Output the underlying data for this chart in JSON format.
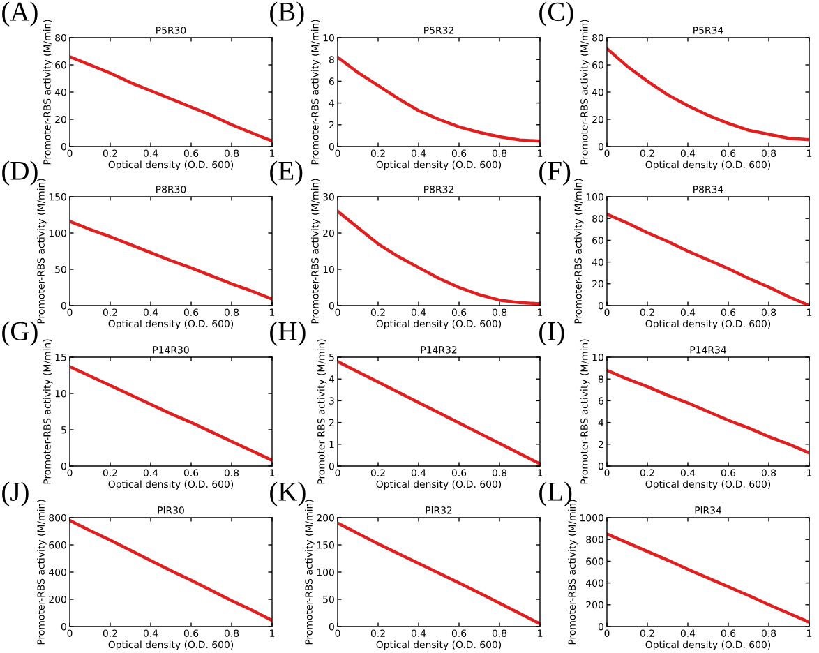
{
  "chart_data": [
    {
      "type": "line",
      "title": "P5R30",
      "xlabel": "Optical density (O.D. 600)",
      "ylabel": "Promoter-RBS activity (M/min)",
      "annotations": [
        "(A)"
      ],
      "x": [
        0,
        0.1,
        0.2,
        0.3,
        0.4,
        0.5,
        0.6,
        0.7,
        0.8,
        0.9,
        1
      ],
      "series": [
        {
          "color": "#e02020",
          "values": [
            66,
            60,
            54,
            47,
            41,
            35,
            29,
            23,
            16,
            10,
            4
          ]
        }
      ],
      "xlim": [
        0,
        1
      ],
      "xticks": [
        0,
        0.2,
        0.4,
        0.6,
        0.8,
        1
      ],
      "ylim": [
        0,
        80
      ],
      "yticks": [
        0,
        20,
        40,
        60,
        80
      ],
      "grid": false,
      "legend": false
    },
    {
      "type": "line",
      "title": "P5R32",
      "xlabel": "Optical density (O.D. 600)",
      "ylabel": "Promoter-RBS activity (M/min)",
      "annotations": [
        "(B)"
      ],
      "x": [
        0,
        0.1,
        0.2,
        0.3,
        0.4,
        0.5,
        0.6,
        0.7,
        0.8,
        0.9,
        1
      ],
      "series": [
        {
          "color": "#e02020",
          "values": [
            8.2,
            6.8,
            5.6,
            4.4,
            3.3,
            2.5,
            1.8,
            1.3,
            0.9,
            0.6,
            0.5
          ]
        }
      ],
      "xlim": [
        0,
        1
      ],
      "xticks": [
        0,
        0.2,
        0.4,
        0.6,
        0.8,
        1
      ],
      "ylim": [
        0,
        10
      ],
      "yticks": [
        0,
        2,
        4,
        6,
        8,
        10
      ],
      "grid": false,
      "legend": false
    },
    {
      "type": "line",
      "title": "P5R34",
      "xlabel": "Optical density (O.D. 600)",
      "ylabel": "Promoter-RBS activity (M/min)",
      "annotations": [
        "(C)"
      ],
      "x": [
        0,
        0.1,
        0.2,
        0.3,
        0.4,
        0.5,
        0.6,
        0.7,
        0.8,
        0.9,
        1
      ],
      "series": [
        {
          "color": "#e02020",
          "values": [
            72,
            59,
            48,
            38,
            30,
            23,
            17,
            12,
            9,
            6,
            5
          ]
        }
      ],
      "xlim": [
        0,
        1
      ],
      "xticks": [
        0,
        0.2,
        0.4,
        0.6,
        0.8,
        1
      ],
      "ylim": [
        0,
        80
      ],
      "yticks": [
        0,
        20,
        40,
        60,
        80
      ],
      "grid": false,
      "legend": false
    },
    {
      "type": "line",
      "title": "P8R30",
      "xlabel": "Optical density (O.D. 600)",
      "ylabel": "Promoter-RBS activity (M/min)",
      "annotations": [
        "(D)"
      ],
      "x": [
        0,
        0.1,
        0.2,
        0.3,
        0.4,
        0.5,
        0.6,
        0.7,
        0.8,
        0.9,
        1
      ],
      "series": [
        {
          "color": "#e02020",
          "values": [
            116,
            105,
            95,
            84,
            73,
            62,
            52,
            41,
            30,
            20,
            9
          ]
        }
      ],
      "xlim": [
        0,
        1
      ],
      "xticks": [
        0,
        0.2,
        0.4,
        0.6,
        0.8,
        1
      ],
      "ylim": [
        0,
        150
      ],
      "yticks": [
        0,
        50,
        100,
        150
      ],
      "grid": false,
      "legend": false
    },
    {
      "type": "line",
      "title": "P8R32",
      "xlabel": "Optical density (O.D. 600)",
      "ylabel": "Promoter-RBS activity (M/min)",
      "annotations": [
        "(E)"
      ],
      "x": [
        0,
        0.1,
        0.2,
        0.3,
        0.4,
        0.5,
        0.6,
        0.7,
        0.8,
        0.9,
        1
      ],
      "series": [
        {
          "color": "#e02020",
          "values": [
            26,
            21.5,
            17,
            13.5,
            10.5,
            7.5,
            5,
            3,
            1.5,
            0.8,
            0.5
          ]
        }
      ],
      "xlim": [
        0,
        1
      ],
      "xticks": [
        0,
        0.2,
        0.4,
        0.6,
        0.8,
        1
      ],
      "ylim": [
        0,
        30
      ],
      "yticks": [
        0,
        10,
        20,
        30
      ],
      "grid": false,
      "legend": false
    },
    {
      "type": "line",
      "title": "P8R34",
      "xlabel": "Optical density (O.D. 600)",
      "ylabel": "Promoter-RBS activity (M/min)",
      "annotations": [
        "(F)"
      ],
      "x": [
        0,
        0.1,
        0.2,
        0.3,
        0.4,
        0.5,
        0.6,
        0.7,
        0.8,
        0.9,
        1
      ],
      "series": [
        {
          "color": "#e02020",
          "values": [
            84,
            76,
            67,
            59,
            50,
            42,
            34,
            25,
            17,
            8,
            0
          ]
        }
      ],
      "xlim": [
        0,
        1
      ],
      "xticks": [
        0,
        0.2,
        0.4,
        0.6,
        0.8,
        1
      ],
      "ylim": [
        0,
        100
      ],
      "yticks": [
        0,
        20,
        40,
        60,
        80,
        100
      ],
      "grid": false,
      "legend": false
    },
    {
      "type": "line",
      "title": "P14R30",
      "xlabel": "Optical density (O.D. 600)",
      "ylabel": "Promoter-RBS activity (M/min)",
      "annotations": [
        "(G)"
      ],
      "x": [
        0,
        0.1,
        0.2,
        0.3,
        0.4,
        0.5,
        0.6,
        0.7,
        0.8,
        0.9,
        1
      ],
      "series": [
        {
          "color": "#e02020",
          "values": [
            13.7,
            12.4,
            11.1,
            9.8,
            8.5,
            7.2,
            6,
            4.7,
            3.4,
            2.1,
            0.8
          ]
        }
      ],
      "xlim": [
        0,
        1
      ],
      "xticks": [
        0,
        0.2,
        0.4,
        0.6,
        0.8,
        1
      ],
      "ylim": [
        0,
        15
      ],
      "yticks": [
        0,
        5,
        10,
        15
      ],
      "grid": false,
      "legend": false
    },
    {
      "type": "line",
      "title": "P14R32",
      "xlabel": "Optical density (O.D. 600)",
      "ylabel": "Promoter-RBS activity (M/min)",
      "annotations": [
        "(H)"
      ],
      "x": [
        0,
        0.1,
        0.2,
        0.3,
        0.4,
        0.5,
        0.6,
        0.7,
        0.8,
        0.9,
        1
      ],
      "series": [
        {
          "color": "#e02020",
          "values": [
            4.8,
            4.33,
            3.86,
            3.39,
            2.92,
            2.45,
            1.98,
            1.51,
            1.04,
            0.57,
            0.1
          ]
        }
      ],
      "xlim": [
        0,
        1
      ],
      "xticks": [
        0,
        0.2,
        0.4,
        0.6,
        0.8,
        1
      ],
      "ylim": [
        0,
        5
      ],
      "yticks": [
        0,
        1,
        2,
        3,
        4,
        5
      ],
      "grid": false,
      "legend": false
    },
    {
      "type": "line",
      "title": "P14R34",
      "xlabel": "Optical density (O.D. 600)",
      "ylabel": "Promoter-RBS activity (M/min)",
      "annotations": [
        "(I)"
      ],
      "x": [
        0,
        0.1,
        0.2,
        0.3,
        0.4,
        0.5,
        0.6,
        0.7,
        0.8,
        0.9,
        1
      ],
      "series": [
        {
          "color": "#e02020",
          "values": [
            8.8,
            8,
            7.3,
            6.5,
            5.8,
            5,
            4.2,
            3.5,
            2.7,
            2,
            1.2
          ]
        }
      ],
      "xlim": [
        0,
        1
      ],
      "xticks": [
        0,
        0.2,
        0.4,
        0.6,
        0.8,
        1
      ],
      "ylim": [
        0,
        10
      ],
      "yticks": [
        0,
        2,
        4,
        6,
        8,
        10
      ],
      "grid": false,
      "legend": false
    },
    {
      "type": "line",
      "title": "PlR30",
      "xlabel": "Optical density (O.D. 600)",
      "ylabel": "Promoter-RBS activity (M/min)",
      "annotations": [
        "(J)"
      ],
      "x": [
        0,
        0.1,
        0.2,
        0.3,
        0.4,
        0.5,
        0.6,
        0.7,
        0.8,
        0.9,
        1
      ],
      "series": [
        {
          "color": "#e02020",
          "values": [
            780,
            705,
            635,
            560,
            485,
            410,
            340,
            265,
            190,
            120,
            45
          ]
        }
      ],
      "xlim": [
        0,
        1
      ],
      "xticks": [
        0,
        0.2,
        0.4,
        0.6,
        0.8,
        1
      ],
      "ylim": [
        0,
        800
      ],
      "yticks": [
        0,
        200,
        400,
        600,
        800
      ],
      "grid": false,
      "legend": false
    },
    {
      "type": "line",
      "title": "PlR32",
      "xlabel": "Optical density (O.D. 600)",
      "ylabel": "Promoter-RBS activity (M/min)",
      "annotations": [
        "(K)"
      ],
      "x": [
        0,
        0.1,
        0.2,
        0.3,
        0.4,
        0.5,
        0.6,
        0.7,
        0.8,
        0.9,
        1
      ],
      "series": [
        {
          "color": "#e02020",
          "values": [
            190,
            171,
            152,
            134,
            116,
            98,
            80,
            62,
            43,
            24,
            5
          ]
        }
      ],
      "xlim": [
        0,
        1
      ],
      "xticks": [
        0,
        0.2,
        0.4,
        0.6,
        0.8,
        1
      ],
      "ylim": [
        0,
        200
      ],
      "yticks": [
        0,
        50,
        100,
        150,
        200
      ],
      "grid": false,
      "legend": false
    },
    {
      "type": "line",
      "title": "PlR34",
      "xlabel": "Optical density (O.D. 600)",
      "ylabel": "Promoter-RBS activity (M/min)",
      "annotations": [
        "(L)"
      ],
      "x": [
        0,
        0.1,
        0.2,
        0.3,
        0.4,
        0.5,
        0.6,
        0.7,
        0.8,
        0.9,
        1
      ],
      "series": [
        {
          "color": "#e02020",
          "values": [
            850,
            770,
            690,
            610,
            525,
            445,
            365,
            285,
            200,
            120,
            40
          ]
        }
      ],
      "xlim": [
        0,
        1
      ],
      "xticks": [
        0,
        0.2,
        0.4,
        0.6,
        0.8,
        1
      ],
      "ylim": [
        0,
        1000
      ],
      "yticks": [
        0,
        200,
        400,
        600,
        800,
        1000
      ],
      "grid": false,
      "legend": false
    }
  ]
}
